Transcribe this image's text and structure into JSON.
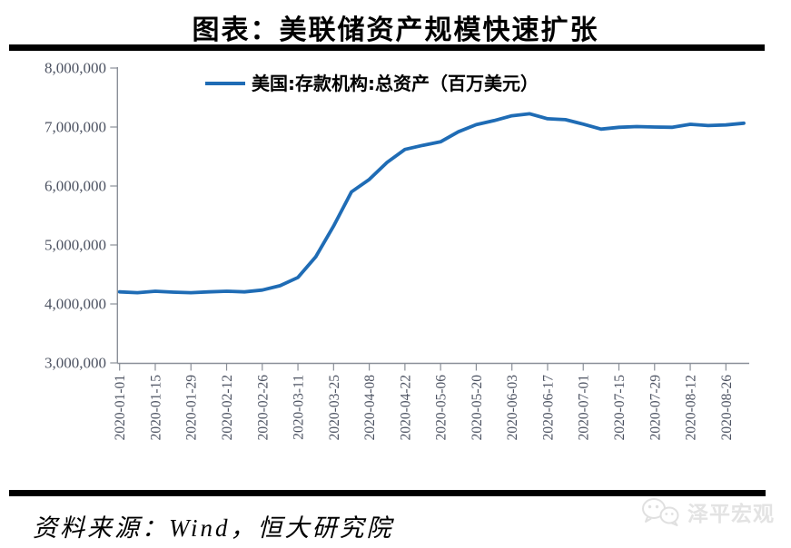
{
  "title": "图表：美联储资产规模快速扩张",
  "source": "资料来源：Wind，恒大研究院",
  "watermark": {
    "label": "泽平宏观",
    "icon": "wechat-icon"
  },
  "colors": {
    "accent_line": "#1f6cb5",
    "axis": "#8a8f98",
    "tick_label": "#4d5362",
    "watermark": "#e3e3e3"
  },
  "chart_data": {
    "type": "line",
    "title": "图表：美联储资产规模快速扩张",
    "xlabel": "",
    "ylabel": "",
    "grid": false,
    "legend_position": "top-center",
    "ylim": [
      3000000,
      8000000
    ],
    "y_ticks": [
      {
        "value": 3000000,
        "label": "3,000,000"
      },
      {
        "value": 4000000,
        "label": "4,000,000"
      },
      {
        "value": 5000000,
        "label": "5,000,000"
      },
      {
        "value": 6000000,
        "label": "6,000,000"
      },
      {
        "value": 7000000,
        "label": "7,000,000"
      },
      {
        "value": 8000000,
        "label": "8,000,000"
      }
    ],
    "x_tick_labels": [
      "2020-01-01",
      "2020-01-15",
      "2020-01-29",
      "2020-02-12",
      "2020-02-26",
      "2020-03-11",
      "2020-03-25",
      "2020-04-08",
      "2020-04-22",
      "2020-05-06",
      "2020-05-20",
      "2020-06-03",
      "2020-06-17",
      "2020-07-01",
      "2020-07-15",
      "2020-07-29",
      "2020-08-12",
      "2020-08-26"
    ],
    "x": [
      "2020-01-01",
      "2020-01-08",
      "2020-01-15",
      "2020-01-22",
      "2020-01-29",
      "2020-02-05",
      "2020-02-12",
      "2020-02-19",
      "2020-02-26",
      "2020-03-04",
      "2020-03-11",
      "2020-03-18",
      "2020-03-25",
      "2020-04-01",
      "2020-04-08",
      "2020-04-15",
      "2020-04-22",
      "2020-04-29",
      "2020-05-06",
      "2020-05-13",
      "2020-05-20",
      "2020-05-27",
      "2020-06-03",
      "2020-06-10",
      "2020-06-17",
      "2020-06-24",
      "2020-07-01",
      "2020-07-08",
      "2020-07-15",
      "2020-07-22",
      "2020-07-29",
      "2020-08-05",
      "2020-08-12",
      "2020-08-19",
      "2020-08-26",
      "2020-09-02"
    ],
    "series": [
      {
        "name": "美国:存款机构:总资产（百万美元）",
        "color": "#1f6cb5",
        "values": [
          4205000,
          4190000,
          4215000,
          4200000,
          4190000,
          4205000,
          4215000,
          4205000,
          4235000,
          4310000,
          4450000,
          4800000,
          5320000,
          5900000,
          6110000,
          6400000,
          6620000,
          6690000,
          6750000,
          6920000,
          7040000,
          7110000,
          7190000,
          7225000,
          7140000,
          7125000,
          7050000,
          6965000,
          6996000,
          7008000,
          7000000,
          6995000,
          7046000,
          7024000,
          7036000,
          7064000
        ]
      }
    ]
  }
}
